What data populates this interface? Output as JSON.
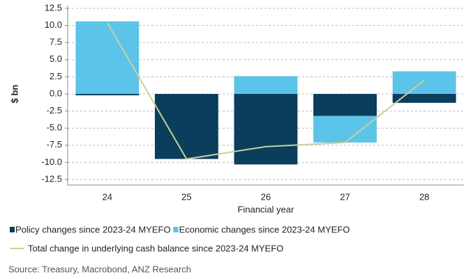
{
  "chart_data": {
    "type": "bar",
    "categories": [
      "24",
      "25",
      "26",
      "27",
      "28"
    ],
    "series": [
      {
        "name": "Policy changes since 2023-24 MYEFO",
        "color": "#0b3d5c",
        "values": [
          -0.2,
          -9.5,
          -10.3,
          -3.2,
          -1.3
        ]
      },
      {
        "name": "Economic changes since 2023-24 MYEFO",
        "color": "#5bc4e8",
        "values": [
          10.6,
          0,
          2.6,
          -3.9,
          3.3
        ]
      },
      {
        "name": "Total change in underlying cash balance since 2023-24 MYEFO",
        "color": "#c9cf9c",
        "type": "line",
        "values": [
          10.4,
          -9.5,
          -7.7,
          -7.1,
          2.0
        ]
      }
    ],
    "ylim": [
      -12.5,
      12.5
    ],
    "yticks": [
      {
        "value": 12.5,
        "label": "12.5"
      },
      {
        "value": 10,
        "label": "10.0"
      },
      7.5,
      {
        "value": 5,
        "label": "5.0"
      },
      2.5,
      {
        "value": 0,
        "label": "0.0"
      },
      -2.5,
      {
        "value": -5,
        "label": "-5.0"
      },
      -7.5,
      {
        "value": -10,
        "label": "-10.0"
      },
      -12.5
    ],
    "ylabel": "$ bn",
    "xlabel": "Financial year",
    "grid": true,
    "source": "Source: Treasury, Macrobond, ANZ Research"
  }
}
